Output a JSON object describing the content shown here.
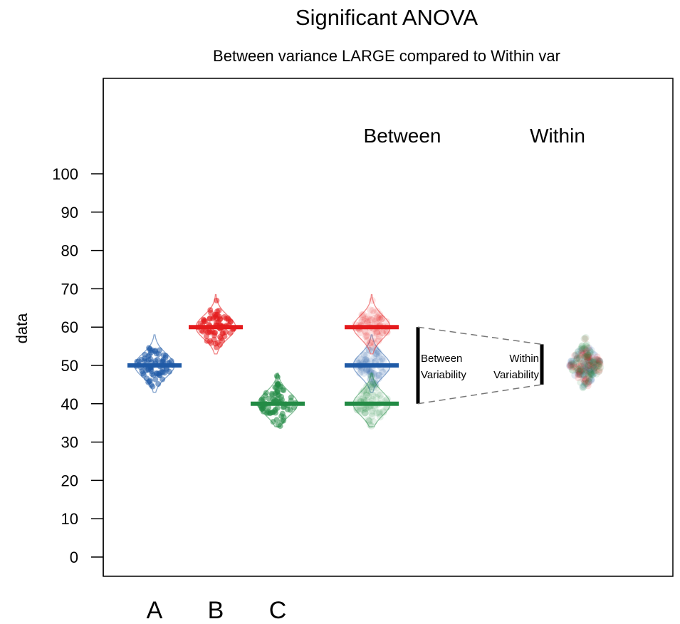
{
  "chart_data": {
    "type": "scatter",
    "title": "Significant ANOVA",
    "subtitle": "Between variance LARGE compared to Within var",
    "ylabel": "data",
    "xlabel": "",
    "ylim": [
      -5,
      130
    ],
    "yticks": [
      0,
      10,
      20,
      30,
      40,
      50,
      60,
      70,
      80,
      90,
      100
    ],
    "categories": [
      "A",
      "B",
      "C"
    ],
    "section_labels": {
      "between": "Between",
      "within": "Within"
    },
    "groups": [
      {
        "name": "A",
        "mean": 50,
        "sd": 3,
        "min": 43,
        "max": 58,
        "color": "#1f5aa6"
      },
      {
        "name": "B",
        "mean": 60,
        "sd": 3,
        "min": 53,
        "max": 68.5,
        "color": "#e41a1c"
      },
      {
        "name": "C",
        "mean": 40,
        "sd": 3,
        "min": 34,
        "max": 48,
        "color": "#238b45"
      }
    ],
    "between_range": [
      40,
      60
    ],
    "within_range": [
      45,
      55.5
    ],
    "annotations": {
      "between_variability": [
        "Between",
        "Variability"
      ],
      "within_variability": [
        "Within",
        "Variability"
      ]
    },
    "grid": false
  }
}
